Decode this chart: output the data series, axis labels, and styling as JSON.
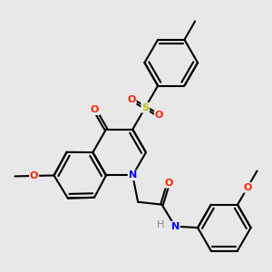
{
  "bg_color": "#e8e8e8",
  "bond_color": "#000000",
  "bond_width": 1.5,
  "atom_colors": {
    "O": "#ff2200",
    "N": "#0000ee",
    "S": "#bbbb00",
    "H": "#888888"
  },
  "font_size": 8.0,
  "bl": 0.32
}
